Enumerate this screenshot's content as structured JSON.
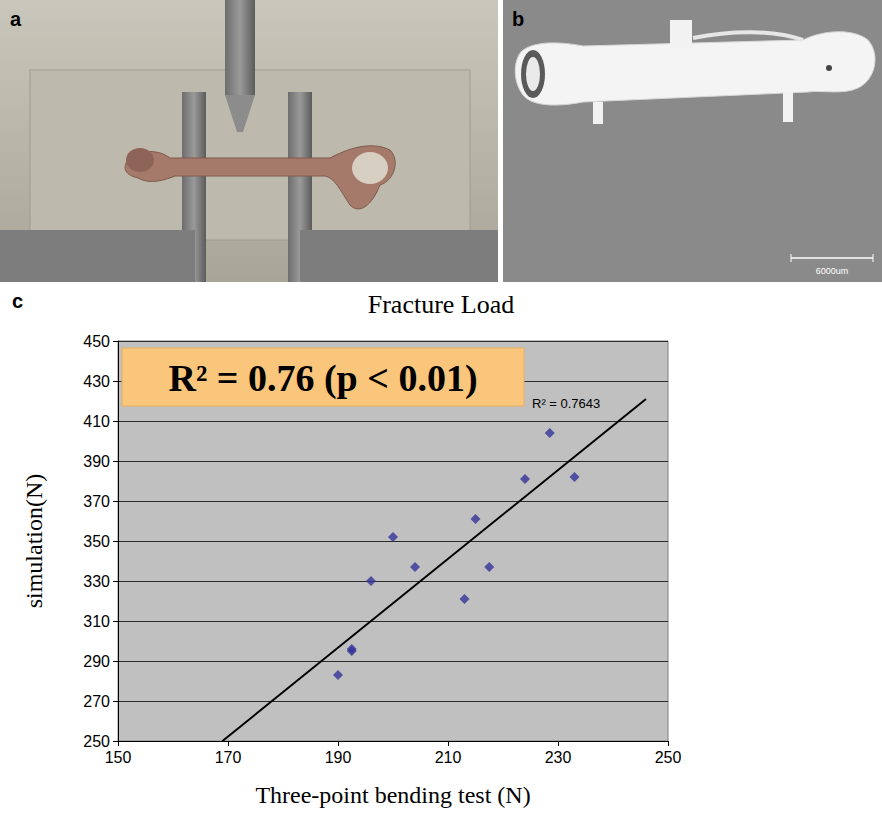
{
  "panel_labels": [
    "a",
    "b",
    "c"
  ],
  "photo_b_scale_bar": "6000um",
  "chart_data": {
    "type": "scatter",
    "title": "Fracture Load",
    "x_label": "Three-point bending test (N)",
    "y_label": "simulation(N)",
    "x": [
      190,
      192.5,
      192.5,
      196,
      200,
      204,
      213,
      215,
      217.5,
      224,
      228.5,
      233
    ],
    "values": [
      283,
      295,
      296,
      330,
      352,
      337,
      321,
      361,
      337,
      381,
      404,
      382
    ],
    "color": "#333399",
    "marker": "diamond",
    "xlim": [
      150,
      250
    ],
    "xticks": [
      150,
      170,
      190,
      210,
      230,
      250
    ],
    "ylim": [
      250,
      450
    ],
    "yticks": [
      250,
      270,
      290,
      310,
      330,
      350,
      370,
      390,
      410,
      430,
      450
    ],
    "grid": true,
    "trendline": {
      "x": [
        169,
        246
      ],
      "values": [
        250,
        421
      ],
      "color": "#000000"
    },
    "annotations": [
      "R² = 0.76 (p < 0.01)",
      "R² = 0.7643"
    ]
  }
}
